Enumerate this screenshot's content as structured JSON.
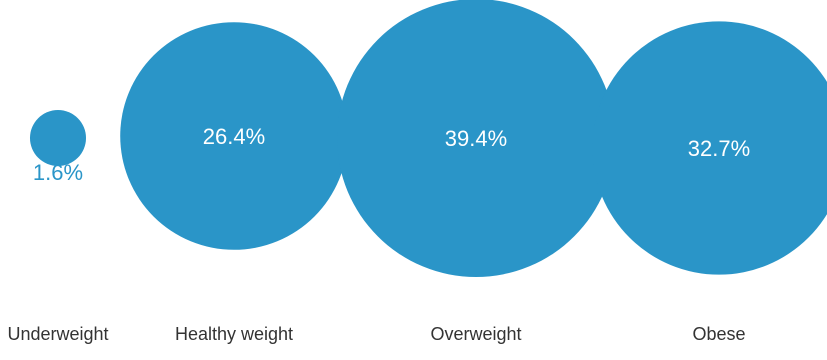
{
  "chart_data": {
    "type": "bubble",
    "title": "",
    "categories": [
      "Underweight",
      "Healthy weight",
      "Overweight",
      "Obese"
    ],
    "values": [
      1.6,
      26.4,
      39.4,
      32.7
    ],
    "labels": [
      "1.6%",
      "26.4%",
      "39.4%",
      "32.7%"
    ],
    "unit": "%",
    "bubble_color": "#2a95c8",
    "legend": "none",
    "grid": false
  }
}
